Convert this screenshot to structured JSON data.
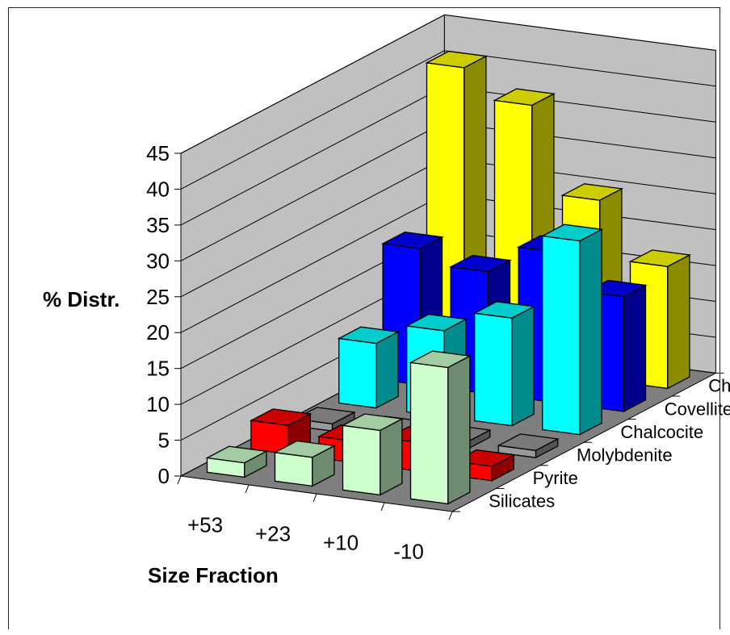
{
  "chart_data": {
    "type": "bar",
    "subtype": "3d-column",
    "title": "",
    "xlabel": "Size Fraction",
    "ylabel": "% Distr.",
    "ylim": [
      0,
      45
    ],
    "yticks": [
      0,
      5,
      10,
      15,
      20,
      25,
      30,
      35,
      40,
      45
    ],
    "categories": [
      "+53",
      "+23",
      "+10",
      "-10"
    ],
    "grid": true,
    "series": [
      {
        "name": "Silicates",
        "color": "#ccffcc",
        "values": [
          2,
          4,
          9,
          19
        ]
      },
      {
        "name": "Pyrite",
        "color": "#ff0000",
        "values": [
          4,
          3,
          4,
          2
        ]
      },
      {
        "name": "Molybdenite",
        "color": "#999999",
        "values": [
          1,
          1,
          1,
          1
        ]
      },
      {
        "name": "Chalcocite",
        "color": "#00ffff",
        "values": [
          9,
          12,
          15,
          27
        ]
      },
      {
        "name": "Covellite",
        "color": "#0000ff",
        "values": [
          19,
          17,
          21,
          16
        ]
      },
      {
        "name": "Chalcopyrite",
        "color": "#ffff00",
        "values": [
          41,
          37,
          25,
          17
        ]
      }
    ]
  }
}
